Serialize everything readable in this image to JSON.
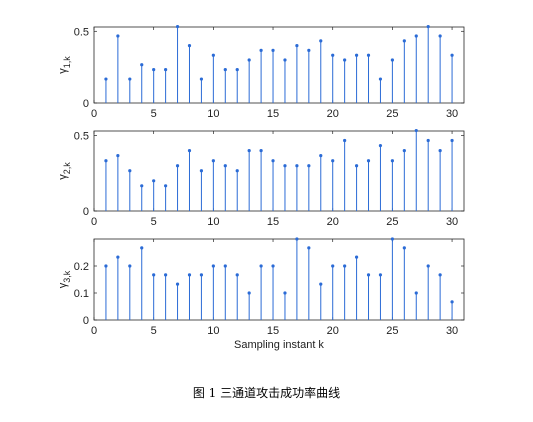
{
  "chart_data": [
    {
      "type": "stem",
      "ylabel": "γ1,k",
      "ylabel_base": "γ",
      "ylabel_sub": "1,k",
      "xlabel": "",
      "xlim": [
        0,
        31
      ],
      "ylim": [
        0,
        0.53
      ],
      "xticks": [
        0,
        5,
        10,
        15,
        20,
        25,
        30
      ],
      "yticks": [
        0,
        0.5
      ],
      "ytick_labels": [
        "0",
        "0.5"
      ],
      "grid": false,
      "color": "#2b6bd6",
      "x": [
        1,
        2,
        3,
        4,
        5,
        6,
        7,
        8,
        9,
        10,
        11,
        12,
        13,
        14,
        15,
        16,
        17,
        18,
        19,
        20,
        21,
        22,
        23,
        24,
        25,
        26,
        27,
        28,
        29,
        30
      ],
      "values": [
        0.167,
        0.467,
        0.167,
        0.267,
        0.233,
        0.233,
        0.533,
        0.4,
        0.167,
        0.333,
        0.233,
        0.233,
        0.3,
        0.367,
        0.367,
        0.3,
        0.4,
        0.367,
        0.433,
        0.333,
        0.3,
        0.333,
        0.333,
        0.167,
        0.3,
        0.433,
        0.467,
        0.533,
        0.467,
        0.333
      ]
    },
    {
      "type": "stem",
      "ylabel": "γ2,k",
      "ylabel_base": "γ",
      "ylabel_sub": "2,k",
      "xlabel": "",
      "xlim": [
        0,
        31
      ],
      "ylim": [
        0,
        0.53
      ],
      "xticks": [
        0,
        5,
        10,
        15,
        20,
        25,
        30
      ],
      "yticks": [
        0,
        0.5
      ],
      "ytick_labels": [
        "0",
        "0.5"
      ],
      "grid": false,
      "color": "#2b6bd6",
      "x": [
        1,
        2,
        3,
        4,
        5,
        6,
        7,
        8,
        9,
        10,
        11,
        12,
        13,
        14,
        15,
        16,
        17,
        18,
        19,
        20,
        21,
        22,
        23,
        24,
        25,
        26,
        27,
        28,
        29,
        30
      ],
      "values": [
        0.333,
        0.367,
        0.267,
        0.167,
        0.2,
        0.167,
        0.3,
        0.4,
        0.267,
        0.333,
        0.3,
        0.267,
        0.4,
        0.4,
        0.333,
        0.3,
        0.3,
        0.3,
        0.367,
        0.333,
        0.467,
        0.3,
        0.333,
        0.433,
        0.333,
        0.4,
        0.533,
        0.467,
        0.4,
        0.467
      ]
    },
    {
      "type": "stem",
      "ylabel": "γ3,k",
      "ylabel_base": "γ",
      "ylabel_sub": "3,k",
      "xlabel": "Sampling instant k",
      "xlim": [
        0,
        31
      ],
      "ylim": [
        0,
        0.3
      ],
      "xticks": [
        0,
        5,
        10,
        15,
        20,
        25,
        30
      ],
      "yticks": [
        0,
        0.1,
        0.2
      ],
      "ytick_labels": [
        "0",
        "0.1",
        "0.2"
      ],
      "grid": false,
      "color": "#2b6bd6",
      "x": [
        1,
        2,
        3,
        4,
        5,
        6,
        7,
        8,
        9,
        10,
        11,
        12,
        13,
        14,
        15,
        16,
        17,
        18,
        19,
        20,
        21,
        22,
        23,
        24,
        25,
        26,
        27,
        28,
        29,
        30
      ],
      "values": [
        0.2,
        0.233,
        0.2,
        0.267,
        0.167,
        0.167,
        0.133,
        0.167,
        0.167,
        0.2,
        0.2,
        0.167,
        0.1,
        0.2,
        0.2,
        0.1,
        0.3,
        0.267,
        0.133,
        0.2,
        0.2,
        0.233,
        0.167,
        0.167,
        0.3,
        0.267,
        0.1,
        0.2,
        0.167,
        0.067
      ]
    }
  ],
  "caption": "图 1  三通道攻击成功率曲线"
}
